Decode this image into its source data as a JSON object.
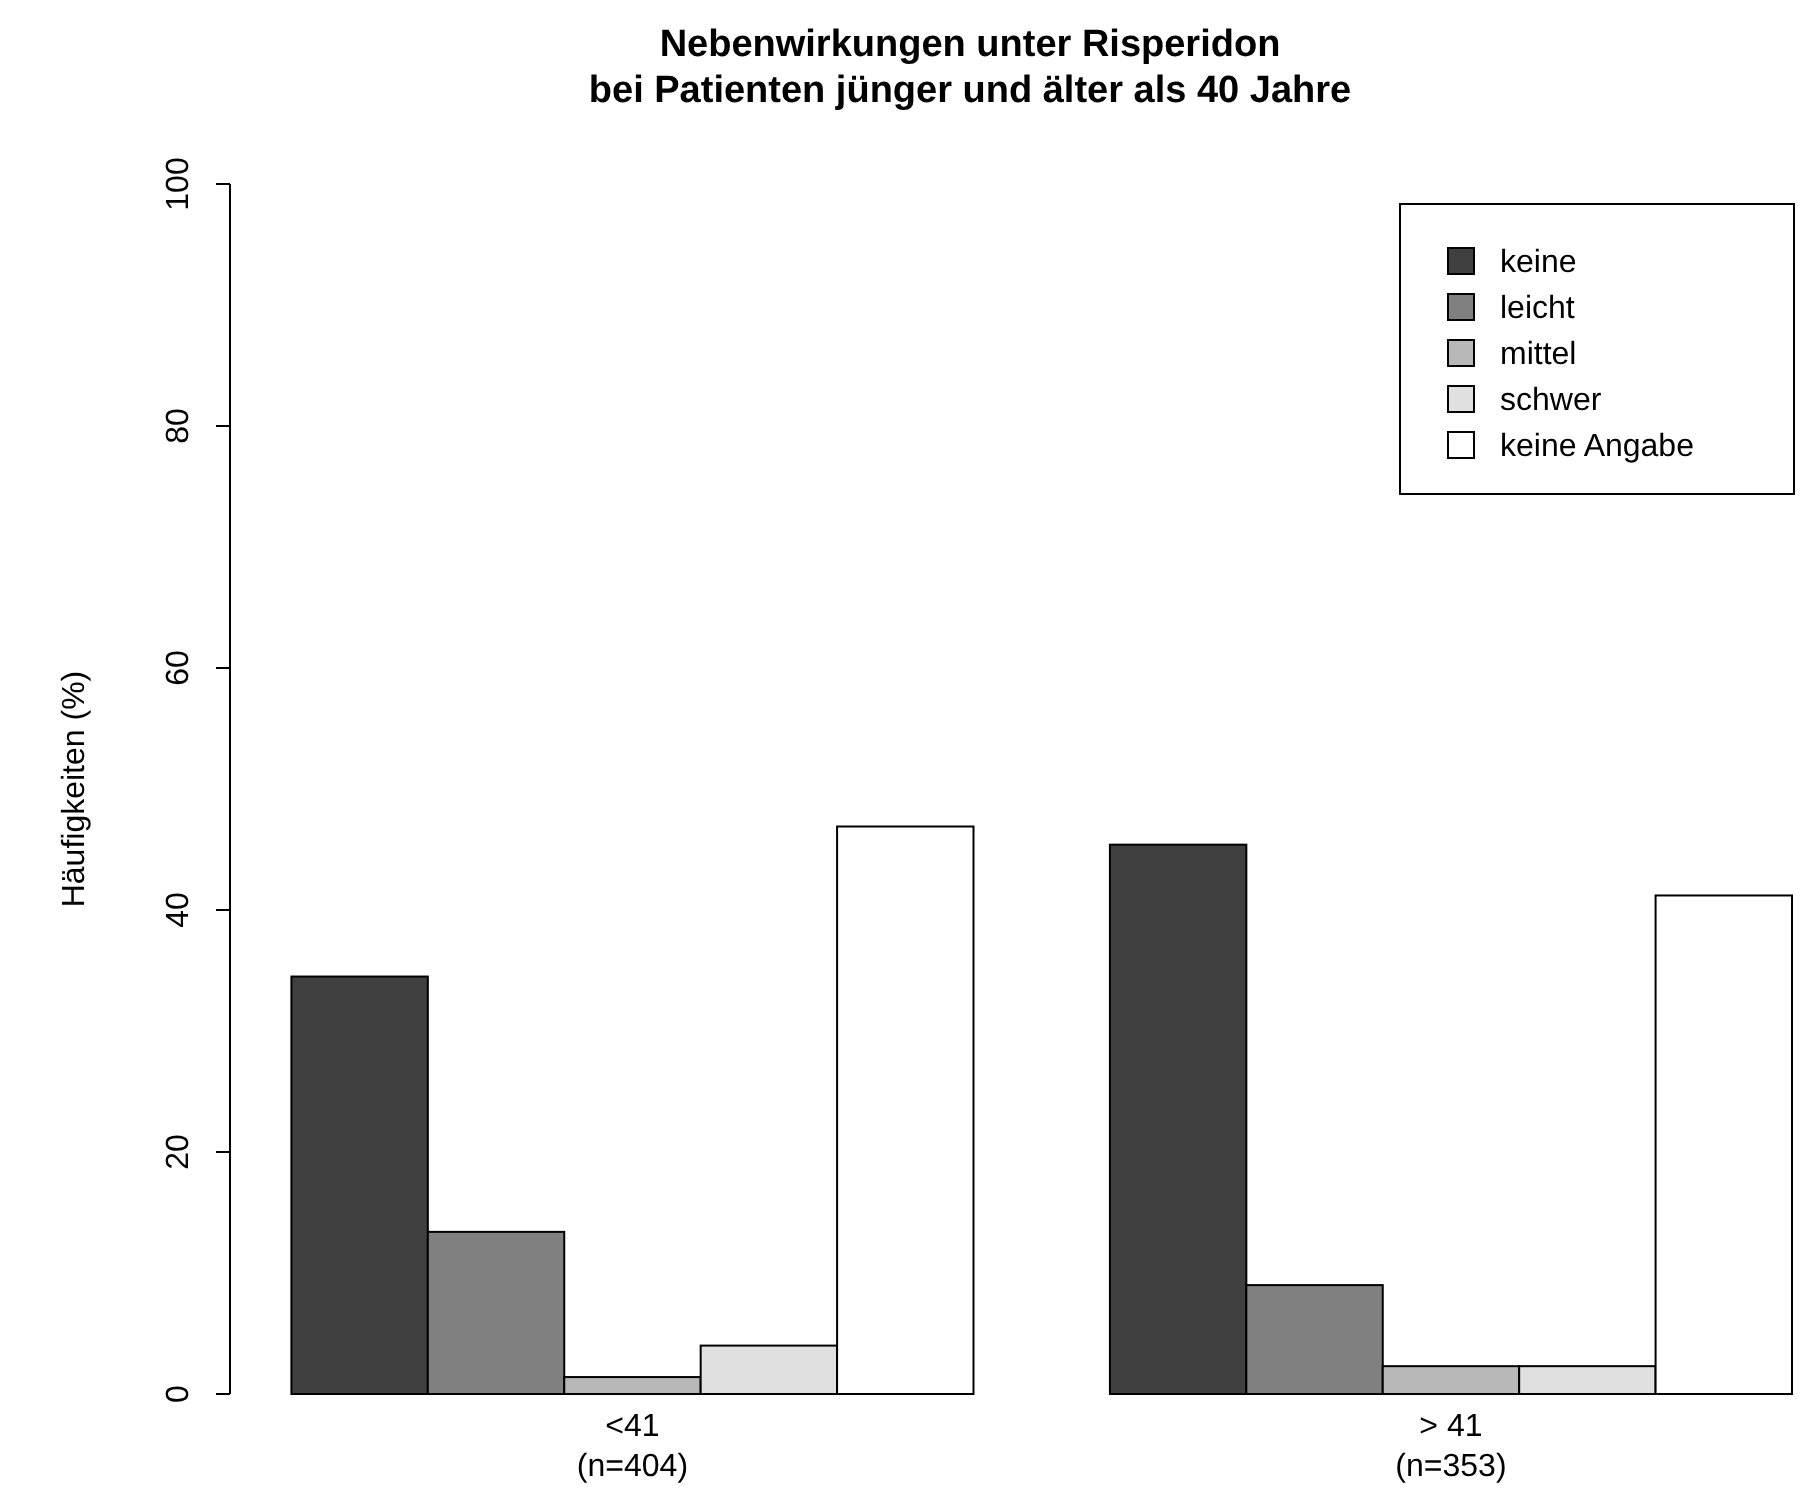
{
  "chart_data": {
    "type": "bar",
    "title": "Nebenwirkungen unter Risperidon\nbei Patienten jünger und älter als 40 Jahre",
    "ylabel": "Häufigkeiten (%)",
    "categories": [
      "<41\n(n=404)",
      "> 41\n(n=353)"
    ],
    "series": [
      {
        "name": "keine",
        "color": "#404040",
        "values": [
          34.5,
          45.4
        ]
      },
      {
        "name": "leicht",
        "color": "#808080",
        "values": [
          13.4,
          9.0
        ]
      },
      {
        "name": "mittel",
        "color": "#b8b8b8",
        "values": [
          1.4,
          2.3
        ]
      },
      {
        "name": "schwer",
        "color": "#e0e0e0",
        "values": [
          4.0,
          2.3
        ]
      },
      {
        "name": "keine Angabe",
        "color": "#ffffff",
        "values": [
          46.9,
          41.2
        ]
      }
    ],
    "ylim": [
      0,
      100
    ],
    "yticks": [
      0,
      20,
      40,
      60,
      80,
      100
    ],
    "legend": "top right",
    "grid": false
  }
}
